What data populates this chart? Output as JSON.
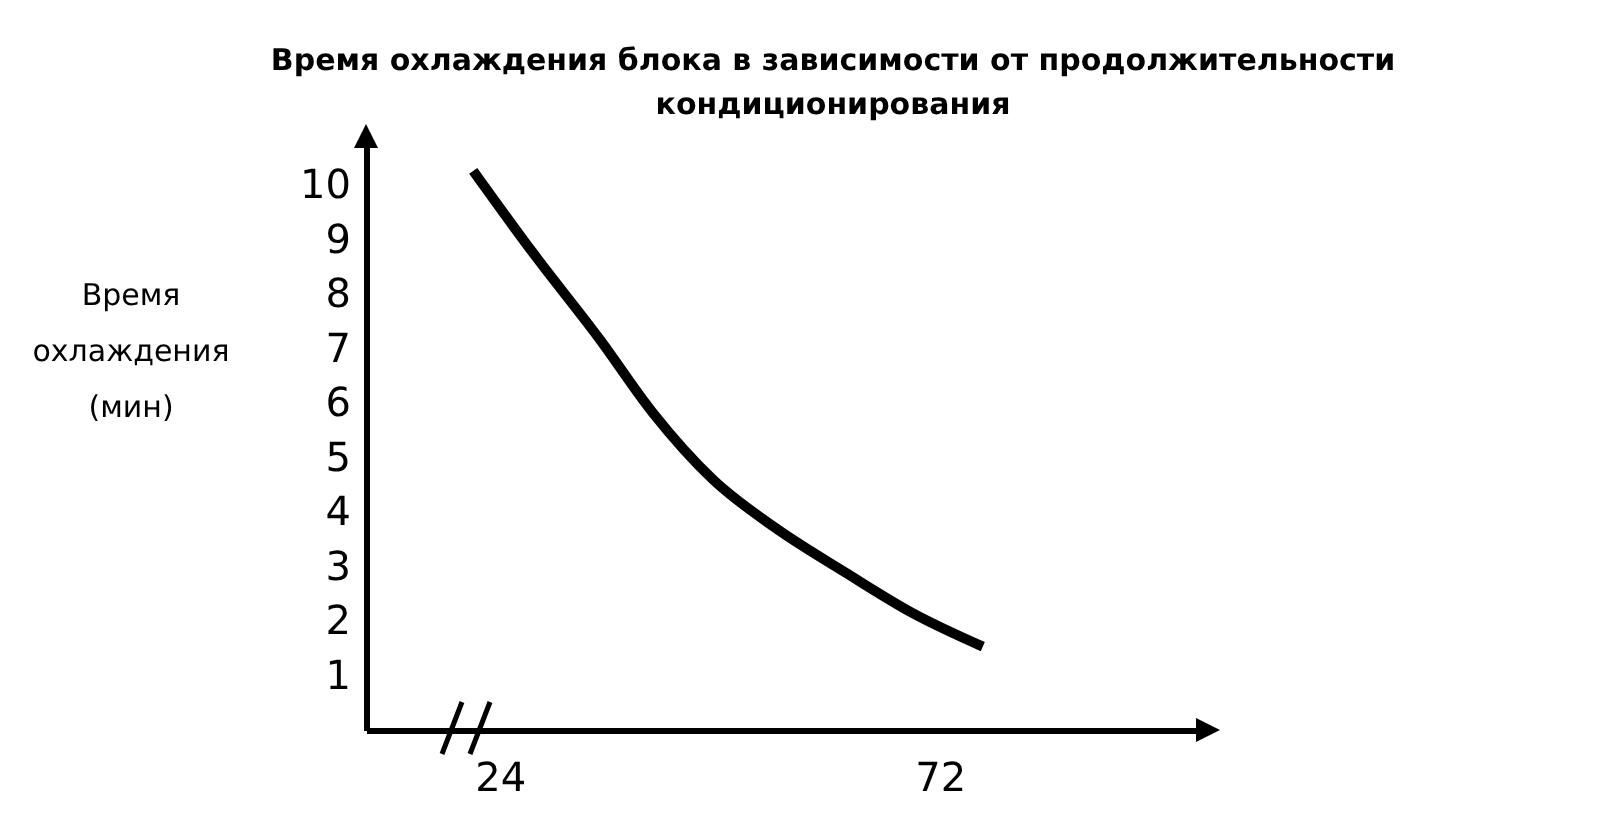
{
  "chart_data": {
    "type": "line",
    "title": "Время охлаждения блока в зависимости от продолжительности кондиционирования",
    "ylabel": "Время охлаждения (мин)",
    "x": [
      21.1,
      27.6,
      34.9,
      40.7,
      47.3,
      53.8,
      61.8,
      69.1,
      76.7
    ],
    "values": [
      10.26,
      8.76,
      7.17,
      5.82,
      4.59,
      3.74,
      2.88,
      2.14,
      1.53
    ],
    "color": "#000000",
    "xlim": [
      9.4,
      100.4
    ],
    "xticks": [
      24,
      72
    ],
    "ylim": [
      0,
      10.9
    ],
    "yticks": [
      1,
      2,
      3,
      4,
      5,
      6,
      7,
      8,
      9,
      10
    ],
    "grid": false
  }
}
